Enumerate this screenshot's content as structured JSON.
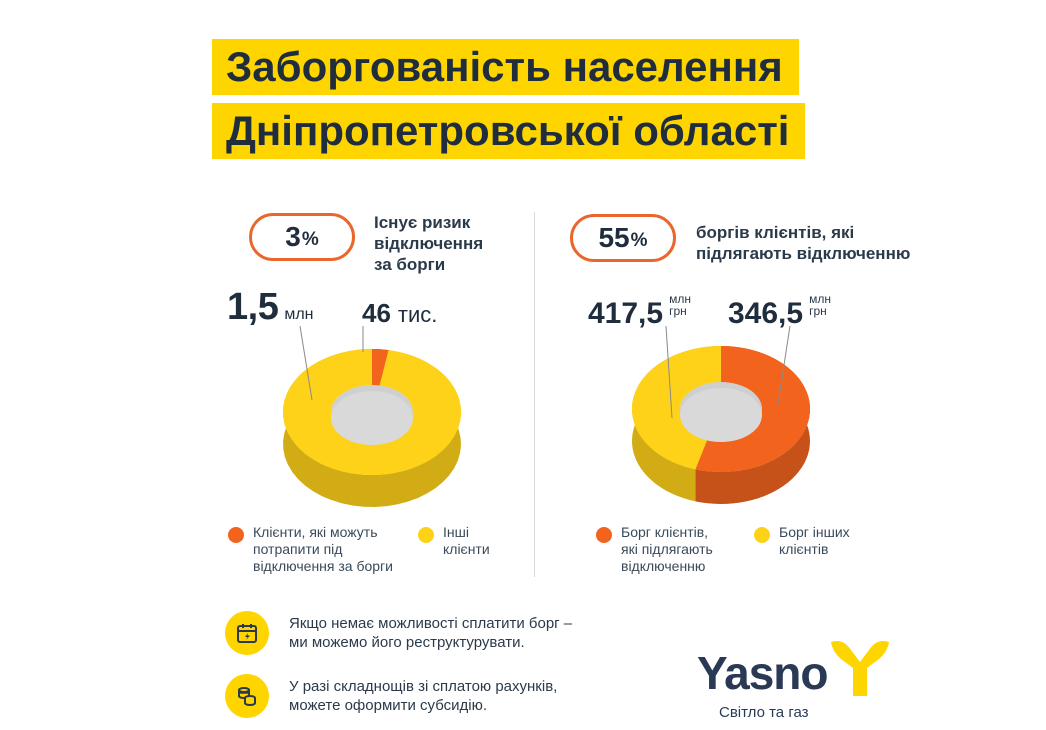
{
  "title": {
    "line1": "Заборгованість населення",
    "line2": "Дніпропетровської області"
  },
  "left": {
    "pill_number": "3",
    "pill_unit": "%",
    "caption": [
      "Існує ризик",
      "відключення",
      "за борги"
    ],
    "big_value": "1,5",
    "big_unit": "млн",
    "small_value": "46",
    "small_unit": "тис.",
    "legend": [
      {
        "lines": [
          "Клієнти, які можуть",
          "потрапити під",
          "відключення за борги"
        ],
        "color": "#F2641E"
      },
      {
        "lines": [
          "Інші",
          "клієнти"
        ],
        "color": "#FFD21A"
      }
    ]
  },
  "right": {
    "pill_number": "55",
    "pill_unit": "%",
    "caption": [
      "боргів клієнтів, які",
      "підлягають відключенню"
    ],
    "value_a": "417,5",
    "unit_a": [
      "млн",
      "грн"
    ],
    "value_b": "346,5",
    "unit_b": [
      "млн",
      "грн"
    ],
    "legend": [
      {
        "lines": [
          "Борг клієнтів,",
          "які підлягають",
          "відключенню"
        ],
        "color": "#F2641E"
      },
      {
        "lines": [
          "Борг інших",
          "клієнтів"
        ],
        "color": "#FFD21A"
      }
    ]
  },
  "info": [
    {
      "lines": [
        "Якщо немає можливості сплатити борг –",
        "ми можемо його реструктурувати."
      ],
      "icon": "calendar-icon"
    },
    {
      "lines": [
        "У разі складнощів зі сплатою рахунків,",
        "можете оформити субсидію."
      ],
      "icon": "coins-icon"
    }
  ],
  "brand": {
    "name": "Yasno",
    "tagline": "Світло та газ",
    "accent": "#FFD500",
    "orange": "#F2641E"
  },
  "chart_data": [
    {
      "type": "pie",
      "categories": [
        "Клієнти, які можуть потрапити під відключення за борги",
        "Інші клієнти"
      ],
      "values": [
        46000,
        1500000
      ],
      "labels": [
        "46 тис.",
        "1,5 млн"
      ],
      "annotation": "3% Існує ризик відключення за борги",
      "legend": "bottom",
      "colors": [
        "#F2641E",
        "#FFD21A"
      ]
    },
    {
      "type": "pie",
      "categories": [
        "Борг клієнтів, які підлягають відключенню",
        "Борг інших клієнтів"
      ],
      "values": [
        417.5,
        346.5
      ],
      "labels": [
        "417,5 млн грн",
        "346,5 млн грн"
      ],
      "annotation": "55% боргів клієнтів, які підлягають відключенню",
      "legend": "bottom",
      "colors": [
        "#F2641E",
        "#FFD21A"
      ]
    }
  ]
}
